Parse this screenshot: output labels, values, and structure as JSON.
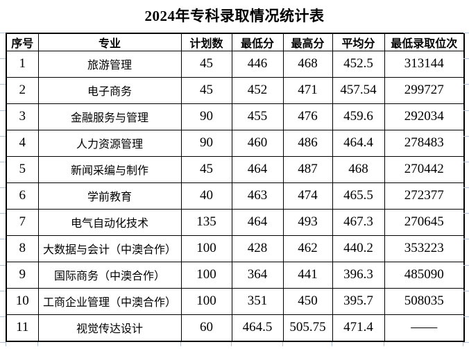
{
  "page": {
    "title": "2024年专科录取情况统计表"
  },
  "table": {
    "headers": [
      "序号",
      "专业",
      "计划数",
      "最低分",
      "最高分",
      "平均分",
      "最低录取位次"
    ],
    "rows": [
      [
        "1",
        "旅游管理",
        "45",
        "446",
        "468",
        "452.5",
        "313144"
      ],
      [
        "2",
        "电子商务",
        "45",
        "452",
        "471",
        "457.54",
        "299727"
      ],
      [
        "3",
        "金融服务与管理",
        "90",
        "455",
        "476",
        "459.6",
        "292034"
      ],
      [
        "4",
        "人力资源管理",
        "90",
        "460",
        "486",
        "464.4",
        "278483"
      ],
      [
        "5",
        "新闻采编与制作",
        "45",
        "464",
        "487",
        "468",
        "270442"
      ],
      [
        "6",
        "学前教育",
        "40",
        "463",
        "474",
        "465.5",
        "272377"
      ],
      [
        "7",
        "电气自动化技术",
        "135",
        "464",
        "493",
        "467.3",
        "270645"
      ],
      [
        "8",
        "大数据与会计（中澳合作）",
        "100",
        "428",
        "462",
        "440.2",
        "353223"
      ],
      [
        "9",
        "国际商务（中澳合作）",
        "100",
        "364",
        "441",
        "396.3",
        "485090"
      ],
      [
        "10",
        "工商企业管理（中澳合作）",
        "100",
        "351",
        "450",
        "395.7",
        "508035"
      ],
      [
        "11",
        "视觉传达设计",
        "60",
        "464.5",
        "505.75",
        "471.4",
        "——"
      ]
    ]
  },
  "colors": {
    "border": "#000000",
    "text": "#000000",
    "background": "#ffffff",
    "gridline_stub": "#b3c1d6"
  }
}
